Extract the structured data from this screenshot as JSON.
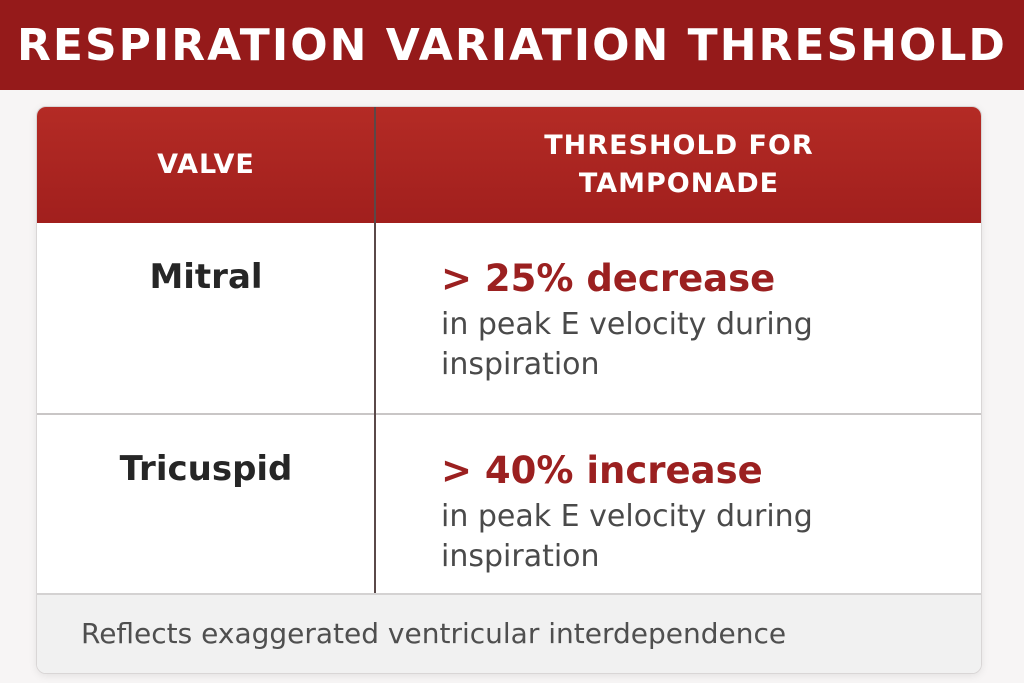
{
  "title": "RESPIRATION VARIATION THRESHOLD",
  "table": {
    "headers": {
      "valve": "VALVE",
      "threshold": "THRESHOLD FOR\nTAMPONADE"
    },
    "rows": [
      {
        "valve": "Mitral",
        "threshold_main": "> 25% decrease",
        "threshold_detail": "in peak E velocity during inspiration"
      },
      {
        "valve": "Tricuspid",
        "threshold_main": "> 40% increase",
        "threshold_detail": "in peak E velocity during inspiration"
      }
    ],
    "footer": "Reflects exaggerated ventricular interdependence"
  },
  "colors": {
    "brand_red": "#951a1a",
    "header_red": "#b42b25",
    "threshold_text": "#9b2020"
  }
}
